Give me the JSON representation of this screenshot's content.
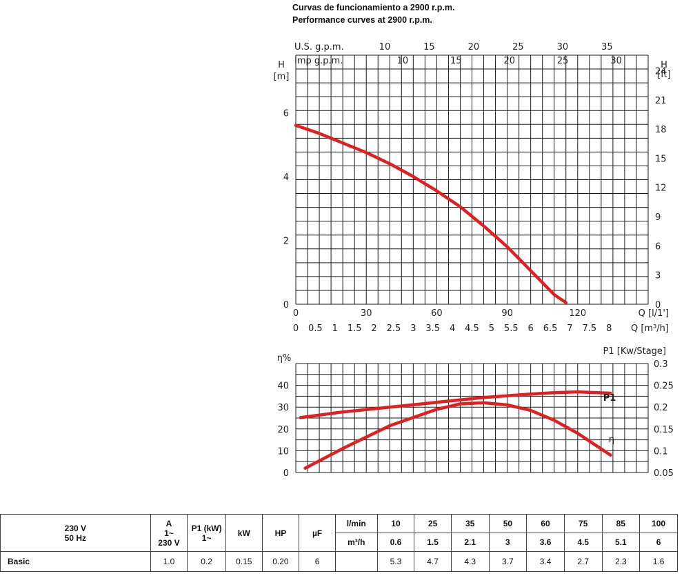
{
  "titles": {
    "line1": "Curvas de funcionamiento a 2900 r.p.m.",
    "line2": "Performance curves at 2900 r.p.m."
  },
  "colors": {
    "curve": "#e02020",
    "grid": "#1a1a1a"
  },
  "chart_data": [
    {
      "type": "line",
      "title": "",
      "xlabel": "Q [l/1']",
      "ylabel": "H [m]",
      "y2label": "H [ft]",
      "xlim": [
        0,
        150
      ],
      "ylim": [
        0,
        7.8
      ],
      "x_ticks": [
        "0",
        "30",
        "60",
        "90",
        "120"
      ],
      "y_ticks": [
        "0",
        "2",
        "4",
        "6"
      ],
      "y2_ticks": [
        "0",
        "3",
        "6",
        "9",
        "12",
        "15",
        "18",
        "21",
        "24"
      ],
      "secondary_x_axes": [
        {
          "label": "Q [m³/h]",
          "ticks": [
            "0",
            "0.5",
            "1",
            "1.5",
            "2",
            "2.5",
            "3",
            "3.5",
            "4",
            "4.5",
            "5",
            "5.5",
            "6",
            "6.5",
            "7",
            "7.5",
            "8"
          ]
        },
        {
          "label": "U.S. g.p.m.",
          "ticks": [
            "10",
            "15",
            "20",
            "25",
            "30",
            "35"
          ]
        },
        {
          "label": "Imp g.p.m.",
          "ticks": [
            "10",
            "15",
            "20",
            "25",
            "30"
          ]
        }
      ],
      "grid": true,
      "series": [
        {
          "name": "",
          "x": [
            0,
            10,
            20,
            30,
            40,
            50,
            60,
            70,
            80,
            90,
            100,
            110,
            115
          ],
          "y": [
            5.6,
            5.35,
            5.05,
            4.75,
            4.4,
            4.0,
            3.55,
            3.05,
            2.45,
            1.8,
            1.05,
            0.3,
            0.05
          ]
        }
      ]
    },
    {
      "type": "line",
      "title": "",
      "xlabel": "",
      "ylabel": "η%",
      "y2label": "P1 [Kw/Stage]",
      "xlim": [
        0,
        150
      ],
      "ylim": [
        0,
        50
      ],
      "y_ticks": [
        "0",
        "10",
        "20",
        "30",
        "40"
      ],
      "y2_ticks": [
        "0.05",
        "0.1",
        "0.15",
        "0.2",
        "0.25",
        "0.3"
      ],
      "grid": true,
      "series": [
        {
          "name": "P1",
          "axis": "right",
          "x": [
            2,
            20,
            40,
            60,
            80,
            100,
            110,
            120,
            134
          ],
          "y": [
            0.176,
            0.189,
            0.2,
            0.211,
            0.222,
            0.23,
            0.233,
            0.235,
            0.232
          ]
        },
        {
          "name": "η",
          "axis": "left",
          "x": [
            4,
            20,
            40,
            60,
            70,
            80,
            90,
            100,
            110,
            120,
            134
          ],
          "y": [
            2,
            11,
            21.5,
            29,
            31.5,
            32,
            31,
            28.5,
            24,
            18,
            8
          ]
        }
      ]
    }
  ],
  "table": {
    "voltage": "230 V",
    "freq": "50 Hz",
    "amp_l1": "A",
    "amp_l2": "1~",
    "amp_l3": "230 V",
    "p1_l1": "P1 (kW)",
    "p1_l2": "1~",
    "kw": "kW",
    "hp": "HP",
    "uf": "µF",
    "lmin_label": "l/min",
    "m3h_label": "m³/h",
    "lmin": [
      "10",
      "25",
      "35",
      "50",
      "60",
      "75",
      "85",
      "100"
    ],
    "m3h": [
      "0.6",
      "1.5",
      "2.1",
      "3",
      "3.6",
      "4.5",
      "5.1",
      "6"
    ],
    "row": {
      "model": "Basic",
      "amp": "1.0",
      "p1": "0.2",
      "kw": "0.15",
      "hp": "0.20",
      "uf": "6",
      "heads": [
        "5.3",
        "4.7",
        "4.3",
        "3.7",
        "3.4",
        "2.7",
        "2.3",
        "1.6"
      ]
    }
  }
}
